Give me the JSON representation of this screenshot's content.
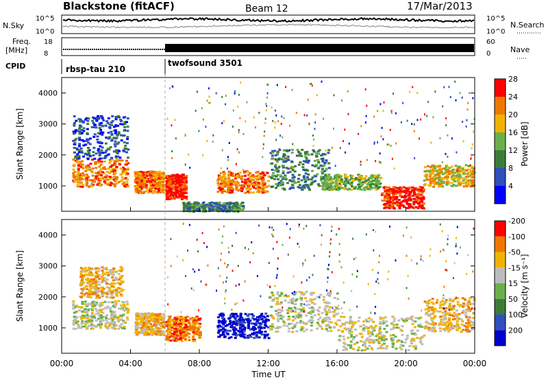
{
  "header": {
    "station": "Blackstone (fitACF)",
    "beam": "Beam 12",
    "date": "17/Mar/2013"
  },
  "top_panels": {
    "nsky_label": "N.Sky",
    "nsearch_label": "N.Search",
    "nsky_ticks": [
      "10^5",
      "10^0"
    ],
    "nsearch_ticks": [
      "10^5",
      "10^0"
    ],
    "freq_label_1": "Freq.",
    "freq_label_2": "[MHz]",
    "freq_ticks": [
      "18",
      "8"
    ],
    "nave_label": "Nave",
    "nave_ticks": [
      "60",
      "0"
    ],
    "cpid_label": "CPID",
    "cpid_modes": [
      {
        "name": "rbsp-tau 210",
        "start_hour": 0,
        "end_hour": 6
      },
      {
        "name": "twofsound 3501",
        "start_hour": 6,
        "end_hour": 24
      }
    ]
  },
  "chart_data": [
    {
      "type": "heatmap",
      "name": "Power",
      "xlabel": "",
      "ylabel": "Slant Range [km]",
      "xlim": [
        0,
        24
      ],
      "ylim": [
        180,
        4500
      ],
      "yticks": [
        "1000",
        "2000",
        "3000",
        "4000"
      ],
      "colorbar_label": "Power [dB]",
      "colorbar_ticks": [
        "4",
        "8",
        "12",
        "16",
        "20",
        "24",
        "28"
      ],
      "colors": [
        "#0000ff",
        "#2f4fbf",
        "#3a7d3a",
        "#6ab04c",
        "#f0b400",
        "#f07800",
        "#ff0000"
      ],
      "regions": [
        {
          "t": [
            0.6,
            3.8
          ],
          "r": [
            1000,
            1900
          ],
          "level": 5
        },
        {
          "t": [
            0.6,
            3.8
          ],
          "r": [
            1900,
            3300
          ],
          "level": 1
        },
        {
          "t": [
            4.2,
            5.9
          ],
          "r": [
            800,
            1500
          ],
          "level": 5
        },
        {
          "t": [
            6.0,
            7.2
          ],
          "r": [
            600,
            1400
          ],
          "level": 6
        },
        {
          "t": [
            7.0,
            10.5
          ],
          "r": [
            200,
            500
          ],
          "level": 2
        },
        {
          "t": [
            9.0,
            12.0
          ],
          "r": [
            800,
            1500
          ],
          "level": 5
        },
        {
          "t": [
            12.0,
            15.5
          ],
          "r": [
            900,
            2200
          ],
          "level": 2
        },
        {
          "t": [
            15.0,
            18.5
          ],
          "r": [
            900,
            1400
          ],
          "level": 3
        },
        {
          "t": [
            18.5,
            21.0
          ],
          "r": [
            300,
            1000
          ],
          "level": 6
        },
        {
          "t": [
            21.0,
            23.9
          ],
          "r": [
            1000,
            1700
          ],
          "level": 4
        }
      ]
    },
    {
      "type": "heatmap",
      "name": "Velocity",
      "xlabel": "Time UT",
      "ylabel": "Slant Range [km]",
      "xlim": [
        0,
        24
      ],
      "ylim": [
        180,
        4500
      ],
      "xticks": [
        "00:00",
        "04:00",
        "08:00",
        "12:00",
        "16:00",
        "20:00",
        "00:00"
      ],
      "yticks": [
        "1000",
        "2000",
        "3000",
        "4000"
      ],
      "colorbar_label": "Velocity [m s⁻¹]",
      "colorbar_ticks": [
        "200",
        "100",
        "50",
        "15",
        "-15",
        "-50",
        "-100",
        "-200"
      ],
      "colors": [
        "#0000cc",
        "#2f4fbf",
        "#3a7d3a",
        "#6ab04c",
        "#bdbdbd",
        "#f0b400",
        "#f07800",
        "#ff0000"
      ],
      "regions": [
        {
          "t": [
            0.6,
            3.8
          ],
          "r": [
            1000,
            1900
          ],
          "level": 4
        },
        {
          "t": [
            1.0,
            3.5
          ],
          "r": [
            2000,
            3000
          ],
          "level": 5
        },
        {
          "t": [
            4.2,
            5.9
          ],
          "r": [
            800,
            1500
          ],
          "level": 5
        },
        {
          "t": [
            6.0,
            8.0
          ],
          "r": [
            600,
            1400
          ],
          "level": 6
        },
        {
          "t": [
            9.0,
            12.0
          ],
          "r": [
            700,
            1500
          ],
          "level": 0
        },
        {
          "t": [
            12.0,
            16.0
          ],
          "r": [
            900,
            2200
          ],
          "level": 4
        },
        {
          "t": [
            16.0,
            21.0
          ],
          "r": [
            300,
            1400
          ],
          "level": 4
        },
        {
          "t": [
            21.0,
            23.9
          ],
          "r": [
            900,
            2000
          ],
          "level": 5
        }
      ]
    }
  ]
}
